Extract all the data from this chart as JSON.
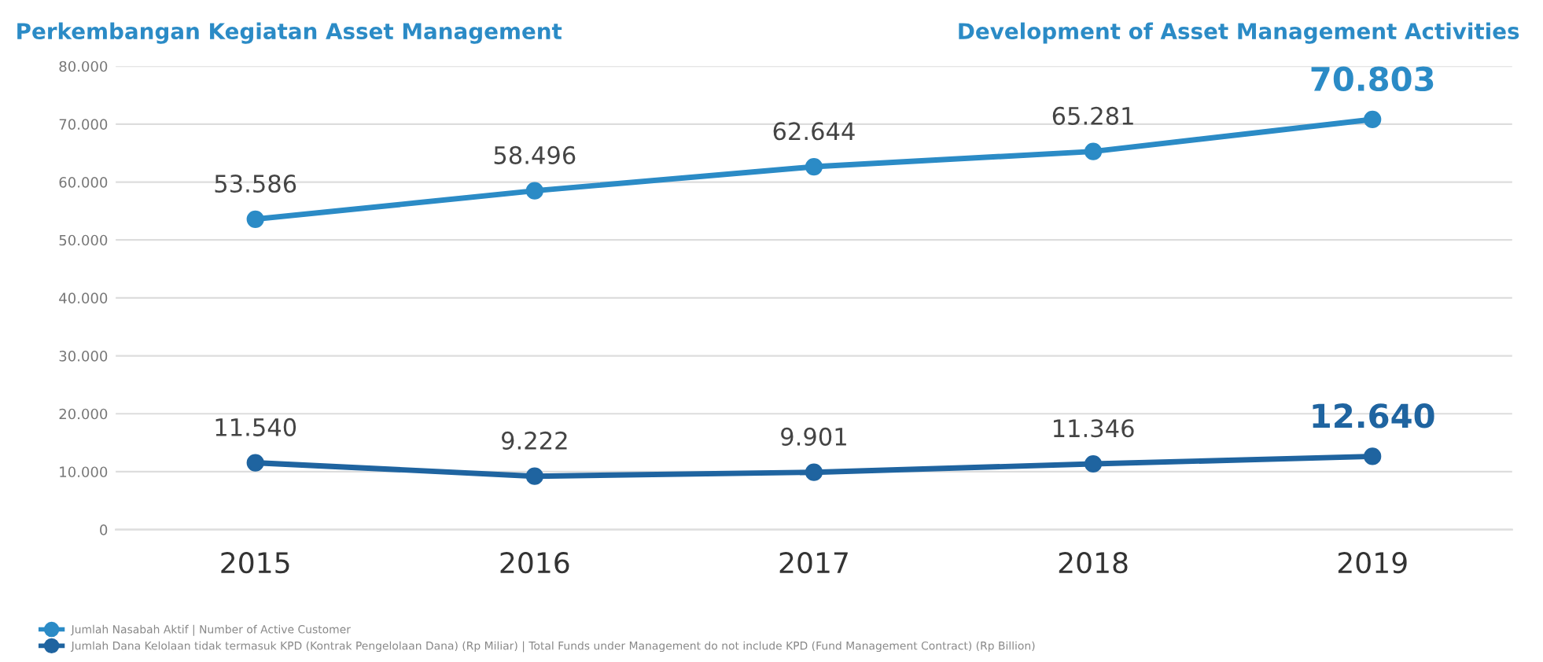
{
  "chart_data": {
    "type": "line",
    "title": "Perkembangan Kegiatan Asset Management",
    "subtitle": "Development of Asset Management Activities",
    "categories": [
      "2015",
      "2016",
      "2017",
      "2018",
      "2019"
    ],
    "series": [
      {
        "name": "Jumlah Nasabah Aktif | Number of Active Customer",
        "color": "#2b8bc6",
        "values": [
          53586,
          58496,
          62644,
          65281,
          70803
        ],
        "value_labels": [
          "53.586",
          "58.496",
          "62.644",
          "65.281",
          "70.803"
        ]
      },
      {
        "name": "Jumlah Dana Kelolaan tidak termasuk KPD (Kontrak Pengelolaan Dana) (Rp Miliar) | Total Funds under Management do not include KPD (Fund Management Contract) (Rp Billion)",
        "color": "#1f64a0",
        "values": [
          11540,
          9222,
          9901,
          11346,
          12640
        ],
        "value_labels": [
          "11.540",
          "9.222",
          "9.901",
          "11.346",
          "12.640"
        ]
      }
    ],
    "ylim": [
      0,
      80000
    ],
    "yticks": [
      0,
      {
        "value": 10000,
        "label": "10.000"
      },
      {
        "value": 20000,
        "label": "20.000"
      },
      {
        "value": 30000,
        "label": "30.000"
      },
      {
        "value": 40000,
        "label": "40.000"
      },
      {
        "value": 50000,
        "label": "50.000"
      },
      {
        "value": 60000,
        "label": "60.000"
      },
      {
        "value": 70000,
        "label": "70.000"
      },
      {
        "value": 80000,
        "label": "80.000"
      }
    ],
    "grid": "y",
    "legend": "bottom",
    "marker": "circle",
    "line_style": "solid"
  }
}
